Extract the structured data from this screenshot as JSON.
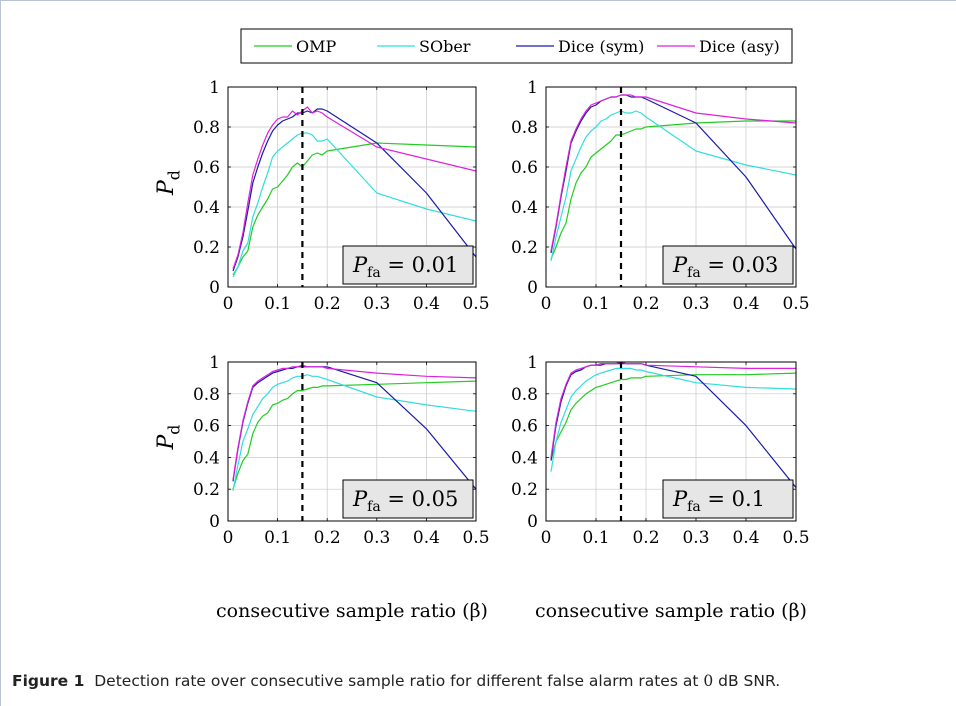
{
  "caption": {
    "label": "Figure 1",
    "text_before": "Detection rate over consecutive sample ratio for different false alarm rates at",
    "snr_value": "0",
    "text_after": "dB SNR."
  },
  "colors": {
    "OMP": "#22cc22",
    "SOber": "#33dddd",
    "Dice (sym)": "#1a1aaa",
    "Dice (asy)": "#dd22dd"
  },
  "chart_data": [
    {
      "type": "line",
      "annotation": "P_fa = 0.01",
      "ylabel": "P_d",
      "xlabel": "",
      "xlim": [
        0,
        0.5
      ],
      "ylim": [
        0,
        1
      ],
      "xticks": [
        "0",
        "0.1",
        "0.2",
        "0.3",
        "0.4",
        "0.5"
      ],
      "yticks": [
        "0",
        "0.2",
        "0.4",
        "0.6",
        "0.8",
        "1"
      ],
      "grid": true,
      "vline_x": 0.15,
      "series": [
        {
          "name": "OMP",
          "x": [
            0.01,
            0.02,
            0.03,
            0.04,
            0.05,
            0.06,
            0.07,
            0.08,
            0.09,
            0.1,
            0.11,
            0.12,
            0.13,
            0.14,
            0.15,
            0.16,
            0.17,
            0.18,
            0.19,
            0.2,
            0.3,
            0.4,
            0.5
          ],
          "y": [
            0.06,
            0.1,
            0.15,
            0.18,
            0.3,
            0.36,
            0.4,
            0.44,
            0.49,
            0.5,
            0.53,
            0.56,
            0.6,
            0.62,
            0.6,
            0.63,
            0.66,
            0.67,
            0.66,
            0.68,
            0.72,
            0.71,
            0.7
          ]
        },
        {
          "name": "SOber",
          "x": [
            0.01,
            0.02,
            0.03,
            0.04,
            0.05,
            0.06,
            0.07,
            0.08,
            0.09,
            0.1,
            0.11,
            0.12,
            0.13,
            0.14,
            0.15,
            0.16,
            0.17,
            0.18,
            0.19,
            0.2,
            0.3,
            0.4,
            0.5
          ],
          "y": [
            0.05,
            0.1,
            0.18,
            0.22,
            0.35,
            0.42,
            0.5,
            0.57,
            0.65,
            0.68,
            0.7,
            0.72,
            0.74,
            0.76,
            0.77,
            0.77,
            0.76,
            0.73,
            0.73,
            0.74,
            0.47,
            0.39,
            0.33
          ]
        },
        {
          "name": "Dice (sym)",
          "x": [
            0.01,
            0.02,
            0.03,
            0.04,
            0.05,
            0.06,
            0.07,
            0.08,
            0.09,
            0.1,
            0.11,
            0.12,
            0.13,
            0.14,
            0.15,
            0.16,
            0.17,
            0.18,
            0.19,
            0.2,
            0.3,
            0.4,
            0.5
          ],
          "y": [
            0.08,
            0.15,
            0.25,
            0.38,
            0.52,
            0.6,
            0.67,
            0.73,
            0.78,
            0.81,
            0.83,
            0.84,
            0.85,
            0.87,
            0.87,
            0.88,
            0.87,
            0.89,
            0.89,
            0.88,
            0.72,
            0.47,
            0.15
          ]
        },
        {
          "name": "Dice (asy)",
          "x": [
            0.01,
            0.02,
            0.03,
            0.04,
            0.05,
            0.06,
            0.07,
            0.08,
            0.09,
            0.1,
            0.11,
            0.12,
            0.13,
            0.14,
            0.15,
            0.16,
            0.17,
            0.18,
            0.19,
            0.2,
            0.3,
            0.4,
            0.5
          ],
          "y": [
            0.09,
            0.16,
            0.27,
            0.42,
            0.56,
            0.64,
            0.71,
            0.77,
            0.81,
            0.84,
            0.85,
            0.85,
            0.88,
            0.86,
            0.88,
            0.9,
            0.87,
            0.88,
            0.87,
            0.85,
            0.7,
            0.64,
            0.58
          ]
        }
      ]
    },
    {
      "type": "line",
      "annotation": "P_fa = 0.03",
      "ylabel": "",
      "xlabel": "",
      "xlim": [
        0,
        0.5
      ],
      "ylim": [
        0,
        1
      ],
      "xticks": [
        "0",
        "0.1",
        "0.2",
        "0.3",
        "0.4",
        "0.5"
      ],
      "yticks": [
        "0",
        "0.2",
        "0.4",
        "0.6",
        "0.8",
        "1"
      ],
      "grid": true,
      "vline_x": 0.15,
      "series": [
        {
          "name": "OMP",
          "x": [
            0.01,
            0.02,
            0.03,
            0.04,
            0.05,
            0.06,
            0.07,
            0.08,
            0.09,
            0.1,
            0.11,
            0.12,
            0.13,
            0.14,
            0.15,
            0.16,
            0.17,
            0.18,
            0.19,
            0.2,
            0.3,
            0.4,
            0.5
          ],
          "y": [
            0.14,
            0.2,
            0.27,
            0.32,
            0.44,
            0.52,
            0.57,
            0.6,
            0.65,
            0.67,
            0.69,
            0.71,
            0.73,
            0.76,
            0.76,
            0.77,
            0.78,
            0.79,
            0.79,
            0.8,
            0.82,
            0.83,
            0.83
          ]
        },
        {
          "name": "SOber",
          "x": [
            0.01,
            0.02,
            0.03,
            0.04,
            0.05,
            0.06,
            0.07,
            0.08,
            0.09,
            0.1,
            0.11,
            0.12,
            0.13,
            0.14,
            0.15,
            0.16,
            0.17,
            0.18,
            0.19,
            0.2,
            0.3,
            0.4,
            0.5
          ],
          "y": [
            0.13,
            0.25,
            0.35,
            0.45,
            0.58,
            0.64,
            0.7,
            0.75,
            0.78,
            0.8,
            0.83,
            0.84,
            0.86,
            0.87,
            0.88,
            0.87,
            0.87,
            0.88,
            0.87,
            0.85,
            0.68,
            0.61,
            0.56
          ]
        },
        {
          "name": "Dice (sym)",
          "x": [
            0.01,
            0.02,
            0.03,
            0.04,
            0.05,
            0.06,
            0.07,
            0.08,
            0.09,
            0.1,
            0.11,
            0.12,
            0.13,
            0.14,
            0.15,
            0.16,
            0.17,
            0.18,
            0.19,
            0.2,
            0.3,
            0.4,
            0.5
          ],
          "y": [
            0.17,
            0.3,
            0.45,
            0.58,
            0.72,
            0.78,
            0.83,
            0.87,
            0.9,
            0.91,
            0.93,
            0.94,
            0.95,
            0.95,
            0.96,
            0.96,
            0.95,
            0.95,
            0.95,
            0.94,
            0.82,
            0.55,
            0.19
          ]
        },
        {
          "name": "Dice (asy)",
          "x": [
            0.01,
            0.02,
            0.03,
            0.04,
            0.05,
            0.06,
            0.07,
            0.08,
            0.09,
            0.1,
            0.11,
            0.12,
            0.13,
            0.14,
            0.15,
            0.16,
            0.17,
            0.18,
            0.19,
            0.2,
            0.3,
            0.4,
            0.5
          ],
          "y": [
            0.18,
            0.31,
            0.46,
            0.6,
            0.73,
            0.79,
            0.84,
            0.88,
            0.91,
            0.92,
            0.93,
            0.94,
            0.95,
            0.95,
            0.96,
            0.96,
            0.96,
            0.95,
            0.95,
            0.95,
            0.87,
            0.84,
            0.82
          ]
        }
      ]
    },
    {
      "type": "line",
      "annotation": "P_fa = 0.05",
      "ylabel": "P_d",
      "xlabel": "consecutive sample ratio (β)",
      "xlim": [
        0,
        0.5
      ],
      "ylim": [
        0,
        1
      ],
      "xticks": [
        "0",
        "0.1",
        "0.2",
        "0.3",
        "0.4",
        "0.5"
      ],
      "yticks": [
        "0",
        "0.2",
        "0.4",
        "0.6",
        "0.8",
        "1"
      ],
      "grid": true,
      "vline_x": 0.15,
      "series": [
        {
          "name": "OMP",
          "x": [
            0.01,
            0.02,
            0.03,
            0.04,
            0.05,
            0.06,
            0.07,
            0.08,
            0.09,
            0.1,
            0.11,
            0.12,
            0.13,
            0.14,
            0.15,
            0.16,
            0.17,
            0.18,
            0.19,
            0.2,
            0.3,
            0.4,
            0.5
          ],
          "y": [
            0.2,
            0.3,
            0.38,
            0.42,
            0.55,
            0.62,
            0.66,
            0.68,
            0.73,
            0.74,
            0.76,
            0.77,
            0.8,
            0.82,
            0.82,
            0.83,
            0.84,
            0.84,
            0.85,
            0.85,
            0.86,
            0.87,
            0.88
          ]
        },
        {
          "name": "SOber",
          "x": [
            0.01,
            0.02,
            0.03,
            0.04,
            0.05,
            0.06,
            0.07,
            0.08,
            0.09,
            0.1,
            0.11,
            0.12,
            0.13,
            0.14,
            0.15,
            0.16,
            0.17,
            0.18,
            0.19,
            0.2,
            0.3,
            0.4,
            0.5
          ],
          "y": [
            0.19,
            0.35,
            0.5,
            0.58,
            0.67,
            0.72,
            0.77,
            0.8,
            0.84,
            0.86,
            0.87,
            0.88,
            0.9,
            0.91,
            0.91,
            0.92,
            0.91,
            0.91,
            0.9,
            0.89,
            0.78,
            0.73,
            0.69
          ]
        },
        {
          "name": "Dice (sym)",
          "x": [
            0.01,
            0.02,
            0.03,
            0.04,
            0.05,
            0.06,
            0.07,
            0.08,
            0.09,
            0.1,
            0.11,
            0.12,
            0.13,
            0.14,
            0.15,
            0.16,
            0.17,
            0.18,
            0.19,
            0.2,
            0.3,
            0.4,
            0.5
          ],
          "y": [
            0.25,
            0.45,
            0.62,
            0.74,
            0.84,
            0.87,
            0.89,
            0.91,
            0.93,
            0.94,
            0.95,
            0.96,
            0.96,
            0.97,
            0.97,
            0.97,
            0.97,
            0.97,
            0.97,
            0.97,
            0.87,
            0.58,
            0.2
          ]
        },
        {
          "name": "Dice (asy)",
          "x": [
            0.01,
            0.02,
            0.03,
            0.04,
            0.05,
            0.06,
            0.07,
            0.08,
            0.09,
            0.1,
            0.11,
            0.12,
            0.13,
            0.14,
            0.15,
            0.16,
            0.17,
            0.18,
            0.19,
            0.2,
            0.3,
            0.4,
            0.5
          ],
          "y": [
            0.26,
            0.46,
            0.63,
            0.75,
            0.85,
            0.88,
            0.9,
            0.92,
            0.94,
            0.95,
            0.96,
            0.96,
            0.97,
            0.97,
            0.98,
            0.97,
            0.97,
            0.97,
            0.97,
            0.96,
            0.93,
            0.91,
            0.9
          ]
        }
      ]
    },
    {
      "type": "line",
      "annotation": "P_fa = 0.1",
      "ylabel": "",
      "xlabel": "consecutive sample ratio (β)",
      "xlim": [
        0,
        0.5
      ],
      "ylim": [
        0,
        1
      ],
      "xticks": [
        "0",
        "0.1",
        "0.2",
        "0.3",
        "0.4",
        "0.5"
      ],
      "yticks": [
        "0",
        "0.2",
        "0.4",
        "0.6",
        "0.8",
        "1"
      ],
      "grid": true,
      "vline_x": 0.15,
      "series": [
        {
          "name": "OMP",
          "x": [
            0.01,
            0.02,
            0.03,
            0.04,
            0.05,
            0.06,
            0.07,
            0.08,
            0.09,
            0.1,
            0.11,
            0.12,
            0.13,
            0.14,
            0.15,
            0.16,
            0.17,
            0.18,
            0.19,
            0.2,
            0.3,
            0.4,
            0.5
          ],
          "y": [
            0.38,
            0.5,
            0.56,
            0.62,
            0.7,
            0.74,
            0.77,
            0.8,
            0.82,
            0.84,
            0.85,
            0.86,
            0.87,
            0.88,
            0.89,
            0.89,
            0.9,
            0.9,
            0.9,
            0.91,
            0.92,
            0.92,
            0.93
          ]
        },
        {
          "name": "SOber",
          "x": [
            0.01,
            0.02,
            0.03,
            0.04,
            0.05,
            0.06,
            0.07,
            0.08,
            0.09,
            0.1,
            0.11,
            0.12,
            0.13,
            0.14,
            0.15,
            0.16,
            0.17,
            0.18,
            0.19,
            0.2,
            0.3,
            0.4,
            0.5
          ],
          "y": [
            0.31,
            0.5,
            0.62,
            0.7,
            0.78,
            0.82,
            0.85,
            0.88,
            0.9,
            0.92,
            0.93,
            0.94,
            0.95,
            0.96,
            0.96,
            0.96,
            0.96,
            0.95,
            0.95,
            0.94,
            0.87,
            0.84,
            0.83
          ]
        },
        {
          "name": "Dice (sym)",
          "x": [
            0.01,
            0.02,
            0.03,
            0.04,
            0.05,
            0.06,
            0.07,
            0.08,
            0.09,
            0.1,
            0.11,
            0.12,
            0.13,
            0.14,
            0.15,
            0.16,
            0.17,
            0.18,
            0.19,
            0.2,
            0.3,
            0.4,
            0.5
          ],
          "y": [
            0.38,
            0.6,
            0.75,
            0.85,
            0.92,
            0.94,
            0.95,
            0.97,
            0.98,
            0.98,
            0.98,
            0.99,
            0.99,
            0.99,
            0.99,
            0.99,
            0.99,
            0.99,
            0.99,
            0.98,
            0.91,
            0.6,
            0.21
          ]
        },
        {
          "name": "Dice (asy)",
          "x": [
            0.01,
            0.02,
            0.03,
            0.04,
            0.05,
            0.06,
            0.07,
            0.08,
            0.09,
            0.1,
            0.11,
            0.12,
            0.13,
            0.14,
            0.15,
            0.16,
            0.17,
            0.18,
            0.19,
            0.2,
            0.3,
            0.4,
            0.5
          ],
          "y": [
            0.4,
            0.62,
            0.77,
            0.86,
            0.93,
            0.95,
            0.96,
            0.97,
            0.98,
            0.98,
            0.99,
            0.99,
            0.99,
            0.99,
            1.0,
            0.99,
            0.99,
            0.99,
            0.99,
            0.98,
            0.97,
            0.96,
            0.96
          ]
        }
      ]
    }
  ]
}
